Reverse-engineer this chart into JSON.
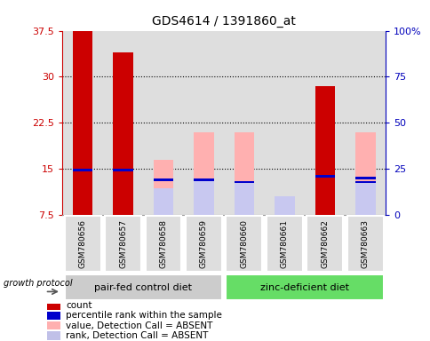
{
  "title": "GDS4614 / 1391860_at",
  "samples": [
    "GSM780656",
    "GSM780657",
    "GSM780658",
    "GSM780659",
    "GSM780660",
    "GSM780661",
    "GSM780662",
    "GSM780663"
  ],
  "count_values": [
    37.5,
    34.0,
    null,
    null,
    null,
    null,
    28.5,
    null
  ],
  "value_absent_bar": [
    null,
    null,
    16.5,
    21.0,
    21.0,
    10.5,
    null,
    21.0
  ],
  "rank_absent_bar": [
    null,
    null,
    11.8,
    13.2,
    12.8,
    10.5,
    null,
    12.8
  ],
  "rank_present": [
    14.8,
    14.8,
    null,
    null,
    null,
    null,
    13.8,
    13.5
  ],
  "rank_absent_dot": [
    null,
    null,
    13.2,
    13.2,
    12.8,
    null,
    null,
    12.8
  ],
  "ylim": [
    7.5,
    37.5
  ],
  "yticks": [
    7.5,
    15.0,
    22.5,
    30.0,
    37.5
  ],
  "ytick_labels": [
    "7.5",
    "15",
    "22.5",
    "30",
    "37.5"
  ],
  "y2lim": [
    0,
    100
  ],
  "y2ticks": [
    0,
    25,
    50,
    75,
    100
  ],
  "y2tick_labels": [
    "0",
    "25",
    "50",
    "75",
    "100%"
  ],
  "grid_lines": [
    15.0,
    22.5,
    30.0
  ],
  "group1_label": "pair-fed control diet",
  "group2_label": "zinc-deficient diet",
  "protocol_label": "growth protocol",
  "legend_items": [
    {
      "label": "count",
      "color": "#cc0000"
    },
    {
      "label": "percentile rank within the sample",
      "color": "#0000cc"
    },
    {
      "label": "value, Detection Call = ABSENT",
      "color": "#ffb0b0"
    },
    {
      "label": "rank, Detection Call = ABSENT",
      "color": "#c0c0e8"
    }
  ],
  "bar_width": 0.5,
  "count_color": "#cc0000",
  "rank_color": "#0000cc",
  "value_absent_color": "#ffb0b0",
  "rank_absent_color": "#c8c8f0",
  "group1_bg": "#cccccc",
  "group2_bg": "#66dd66",
  "axis_color_left": "#cc0000",
  "axis_color_right": "#0000bb",
  "col_bg": "#dedede"
}
